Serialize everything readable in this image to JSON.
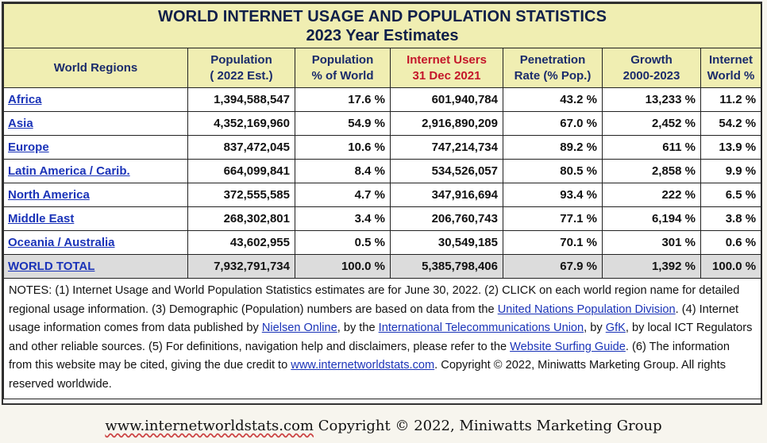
{
  "title": {
    "line1": "WORLD INTERNET USAGE AND POPULATION STATISTICS",
    "line2": "2023 Year Estimates"
  },
  "headers": {
    "region": "World Regions",
    "population_1": "Population",
    "population_2": "( 2022 Est.)",
    "pct_world_1": "Population",
    "pct_world_2": "% of World",
    "users_1": "Internet Users",
    "users_2": "31 Dec 2021",
    "penetration_1": "Penetration",
    "penetration_2": "Rate (% Pop.)",
    "growth_1": "Growth",
    "growth_2": "2000-2023",
    "internet_world_1": "Internet",
    "internet_world_2": "World %"
  },
  "rows": [
    {
      "region": "Africa",
      "population": "1,394,588,547",
      "pct_world": "17.6 %",
      "users": "601,940,784",
      "penetration": "43.2 %",
      "growth": "13,233 %",
      "internet_world": "11.2 %"
    },
    {
      "region": "Asia",
      "population": "4,352,169,960",
      "pct_world": "54.9 %",
      "users": "2,916,890,209",
      "penetration": "67.0 %",
      "growth": "2,452 %",
      "internet_world": "54.2 %"
    },
    {
      "region": "Europe",
      "population": "837,472,045",
      "pct_world": "10.6 %",
      "users": "747,214,734",
      "penetration": "89.2 %",
      "growth": "611 %",
      "internet_world": "13.9 %"
    },
    {
      "region": "Latin America / Carib.",
      "population": "664,099,841",
      "pct_world": "8.4 %",
      "users": "534,526,057",
      "penetration": "80.5 %",
      "growth": "2,858 %",
      "internet_world": "9.9 %"
    },
    {
      "region": "North America",
      "population": "372,555,585",
      "pct_world": "4.7 %",
      "users": "347,916,694",
      "penetration": "93.4 %",
      "growth": "222 %",
      "internet_world": "6.5 %"
    },
    {
      "region": "Middle East",
      "population": "268,302,801",
      "pct_world": "3.4 %",
      "users": "206,760,743",
      "penetration": "77.1 %",
      "growth": "6,194 %",
      "internet_world": "3.8 %"
    },
    {
      "region": "Oceania / Australia",
      "population": "43,602,955",
      "pct_world": "0.5 %",
      "users": "30,549,185",
      "penetration": "70.1 %",
      "growth": "301 %",
      "internet_world": "0.6 %"
    }
  ],
  "total": {
    "region": "WORLD TOTAL",
    "population": "7,932,791,734",
    "pct_world": "100.0 %",
    "users": "5,385,798,406",
    "penetration": "67.9 %",
    "growth": "1,392 %",
    "internet_world": "100.0 %"
  },
  "notes": {
    "t1": "NOTES: (1) Internet Usage and World Population Statistics estimates are for June 30, 2022. (2) CLICK on each world region name for detailed regional usage information. (3) Demographic (Population) numbers are based on data from the ",
    "l1": "United Nations Population Division",
    "t2": ". (4) Internet usage information comes from data published by ",
    "l2": "Nielsen Online",
    "t3": ", by the ",
    "l3": "International Telecommunications Union",
    "t4": ", by ",
    "l4": "GfK",
    "t5": ", by local ICT Regulators and other reliable sources. (5) For definitions, navigation help and disclaimers, please refer to the ",
    "l5": "Website Surfing Guide",
    "t6": ". (6) The information from this website may be cited, giving the due credit to ",
    "l6": "www.internetworldstats.com",
    "t7": ". Copyright © 2022, Miniwatts Marketing Group. All rights reserved worldwide."
  },
  "footer": {
    "url": "www.internetworldstats.com",
    "copyright": "Copyright © 2022, Miniwatts Marketing Group"
  },
  "colors": {
    "header_bg": "#f0eeb2",
    "header_text": "#1a2b6b",
    "highlight_red": "#c4162a",
    "link": "#1a33b8",
    "total_bg": "#dcdcdc"
  }
}
